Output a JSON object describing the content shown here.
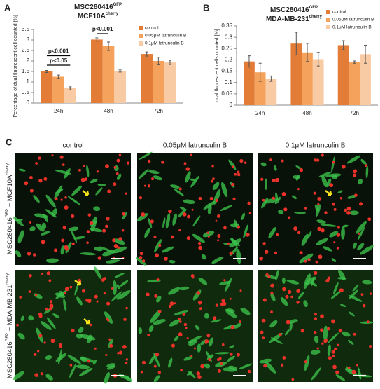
{
  "panel_labels": [
    "A",
    "B",
    "C"
  ],
  "chart_data": [
    {
      "type": "bar",
      "title": [
        {
          "text": "MSC280416",
          "sup": "GFP"
        },
        {
          "text": "MCF10A",
          "sup": "cherry"
        }
      ],
      "y_label": "Percentage of dual fluorescent cell counted [%]",
      "categories": [
        "24h",
        "48h",
        "72h"
      ],
      "series": [
        {
          "name": "control",
          "color": "#e27c37",
          "values": [
            1.5,
            3.02,
            2.33
          ],
          "error": [
            0.05,
            0.08,
            0.1
          ]
        },
        {
          "name": "0.05μM latrunculin B",
          "color": "#f5a35c",
          "values": [
            1.25,
            2.7,
            2.0
          ],
          "error": [
            0.08,
            0.2,
            0.18
          ]
        },
        {
          "name": "0.1μM latrunculin B",
          "color": "#f9cba4",
          "values": [
            0.7,
            1.52,
            1.93
          ],
          "error": [
            0.07,
            0.05,
            0.1
          ]
        }
      ],
      "ylim": [
        0,
        3.5
      ],
      "yticks": [
        0,
        0.5,
        1,
        1.5,
        2,
        2.5,
        3,
        3.5
      ],
      "grid": false,
      "annotations": [
        "p<0.05",
        "p<0.001",
        "p<0.001"
      ]
    },
    {
      "type": "bar",
      "title": [
        {
          "text": "MSC280416",
          "sup": "GFP"
        },
        {
          "text": "MDA-MB-231",
          "sup": "cherry"
        }
      ],
      "y_label": "dual fluorescent cells counted [%]",
      "categories": [
        "24h",
        "48h",
        "72h"
      ],
      "series": [
        {
          "name": "control",
          "color": "#e27c37",
          "values": [
            0.193,
            0.272,
            0.265
          ],
          "error": [
            0.025,
            0.05,
            0.02
          ]
        },
        {
          "name": "0.05μM latrunculin B",
          "color": "#f5a35c",
          "values": [
            0.145,
            0.233,
            0.19
          ],
          "error": [
            0.04,
            0.04,
            0.005
          ]
        },
        {
          "name": "0.1μM latrunculin B",
          "color": "#f9cba4",
          "values": [
            0.117,
            0.203,
            0.225
          ],
          "error": [
            0.012,
            0.03,
            0.04
          ]
        }
      ],
      "ylim": [
        0,
        0.35
      ],
      "yticks": [
        0,
        0.05,
        0.1,
        0.15,
        0.2,
        0.25,
        0.3,
        0.35
      ],
      "grid": false
    }
  ],
  "panel_c": {
    "columns": [
      "control",
      "0.05μM latrunculin B",
      "0.1μM latrunculin B"
    ],
    "rows": [
      [
        "MSC280416",
        "GFP",
        " + MCF10A",
        "cherry"
      ],
      [
        "MSC280416",
        "GFP",
        " + MDA-MB-231",
        "cherry"
      ]
    ]
  }
}
